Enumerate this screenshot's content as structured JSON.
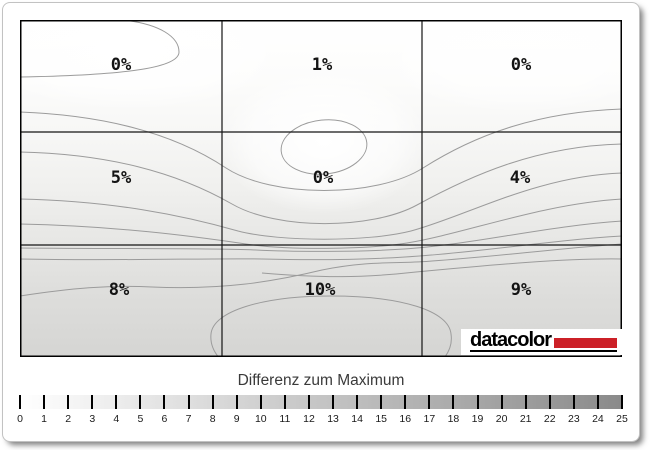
{
  "chart_data": {
    "type": "heatmap",
    "subtype": "contour-uniformity-map",
    "title": "Differenz zum Maximum",
    "grid": {
      "rows": 3,
      "cols": 3
    },
    "cells": [
      [
        "0%",
        "1%",
        "0%"
      ],
      [
        "5%",
        "0%",
        "4%"
      ],
      [
        "8%",
        "10%",
        "9%"
      ]
    ],
    "cell_values_percent": [
      [
        0,
        1,
        0
      ],
      [
        5,
        0,
        4
      ],
      [
        8,
        10,
        9
      ]
    ],
    "colorbar": {
      "min": 0,
      "max": 25,
      "ticks": [
        0,
        1,
        2,
        3,
        4,
        5,
        6,
        7,
        8,
        9,
        10,
        11,
        12,
        13,
        14,
        15,
        16,
        17,
        18,
        19,
        20,
        21,
        22,
        23,
        24,
        25
      ],
      "start_color": "#ffffff",
      "end_color": "#8a8a8a",
      "position": "bottom"
    },
    "contour_line_color": "#9b9b9b",
    "grid_line_color": "#141414"
  },
  "logo": {
    "text": "datacolor",
    "accent_color": "#cc2027"
  }
}
